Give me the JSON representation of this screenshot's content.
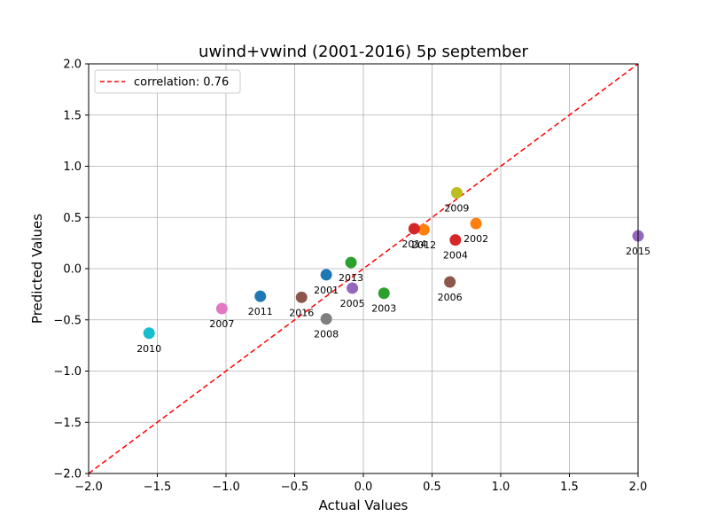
{
  "chart_data": {
    "type": "scatter",
    "title": "uwind+vwind (2001-2016) 5p september",
    "xlabel": "Actual Values",
    "ylabel": "Predicted Values",
    "xlim": [
      -2.0,
      2.0
    ],
    "ylim": [
      -2.0,
      2.0
    ],
    "xticks": [
      "−2.0",
      "−1.5",
      "−1.0",
      "−0.5",
      "0.0",
      "0.5",
      "1.0",
      "1.5",
      "2.0"
    ],
    "yticks": [
      "−2.0",
      "−1.5",
      "−1.0",
      "−0.5",
      "0.0",
      "0.5",
      "1.0",
      "1.5",
      "2.0"
    ],
    "grid": true,
    "legend": {
      "position": "upper-left",
      "label": "correlation: 0.76"
    },
    "reference_line": {
      "style": "dashed",
      "color": "#ff0000",
      "from": [
        -2.0,
        -2.0
      ],
      "to": [
        2.0,
        2.0
      ]
    },
    "points": [
      {
        "label": "2001",
        "x": -0.27,
        "y": -0.06,
        "color": "#1f77b4"
      },
      {
        "label": "2002",
        "x": 0.82,
        "y": 0.44,
        "color": "#ff7f0e"
      },
      {
        "label": "2003",
        "x": 0.15,
        "y": -0.24,
        "color": "#2ca02c"
      },
      {
        "label": "2004",
        "x": 0.67,
        "y": 0.28,
        "color": "#d62728"
      },
      {
        "label": "2005",
        "x": -0.08,
        "y": -0.19,
        "color": "#9467bd"
      },
      {
        "label": "2006",
        "x": 0.63,
        "y": -0.13,
        "color": "#8c564b"
      },
      {
        "label": "2007",
        "x": -1.03,
        "y": -0.39,
        "color": "#e377c2"
      },
      {
        "label": "2008",
        "x": -0.27,
        "y": -0.49,
        "color": "#7f7f7f"
      },
      {
        "label": "2009",
        "x": 0.68,
        "y": 0.74,
        "color": "#bcbd22"
      },
      {
        "label": "2010",
        "x": -1.56,
        "y": -0.63,
        "color": "#17becf"
      },
      {
        "label": "2011",
        "x": -0.75,
        "y": -0.27,
        "color": "#1f77b4"
      },
      {
        "label": "2012",
        "x": 0.44,
        "y": 0.38,
        "color": "#ff7f0e"
      },
      {
        "label": "2013",
        "x": -0.09,
        "y": 0.06,
        "color": "#2ca02c"
      },
      {
        "label": "2014",
        "x": 0.37,
        "y": 0.39,
        "color": "#d62728"
      },
      {
        "label": "2015",
        "x": 2.0,
        "y": 0.32,
        "color": "#9467bd"
      },
      {
        "label": "2016",
        "x": -0.45,
        "y": -0.28,
        "color": "#8c564b"
      }
    ]
  }
}
